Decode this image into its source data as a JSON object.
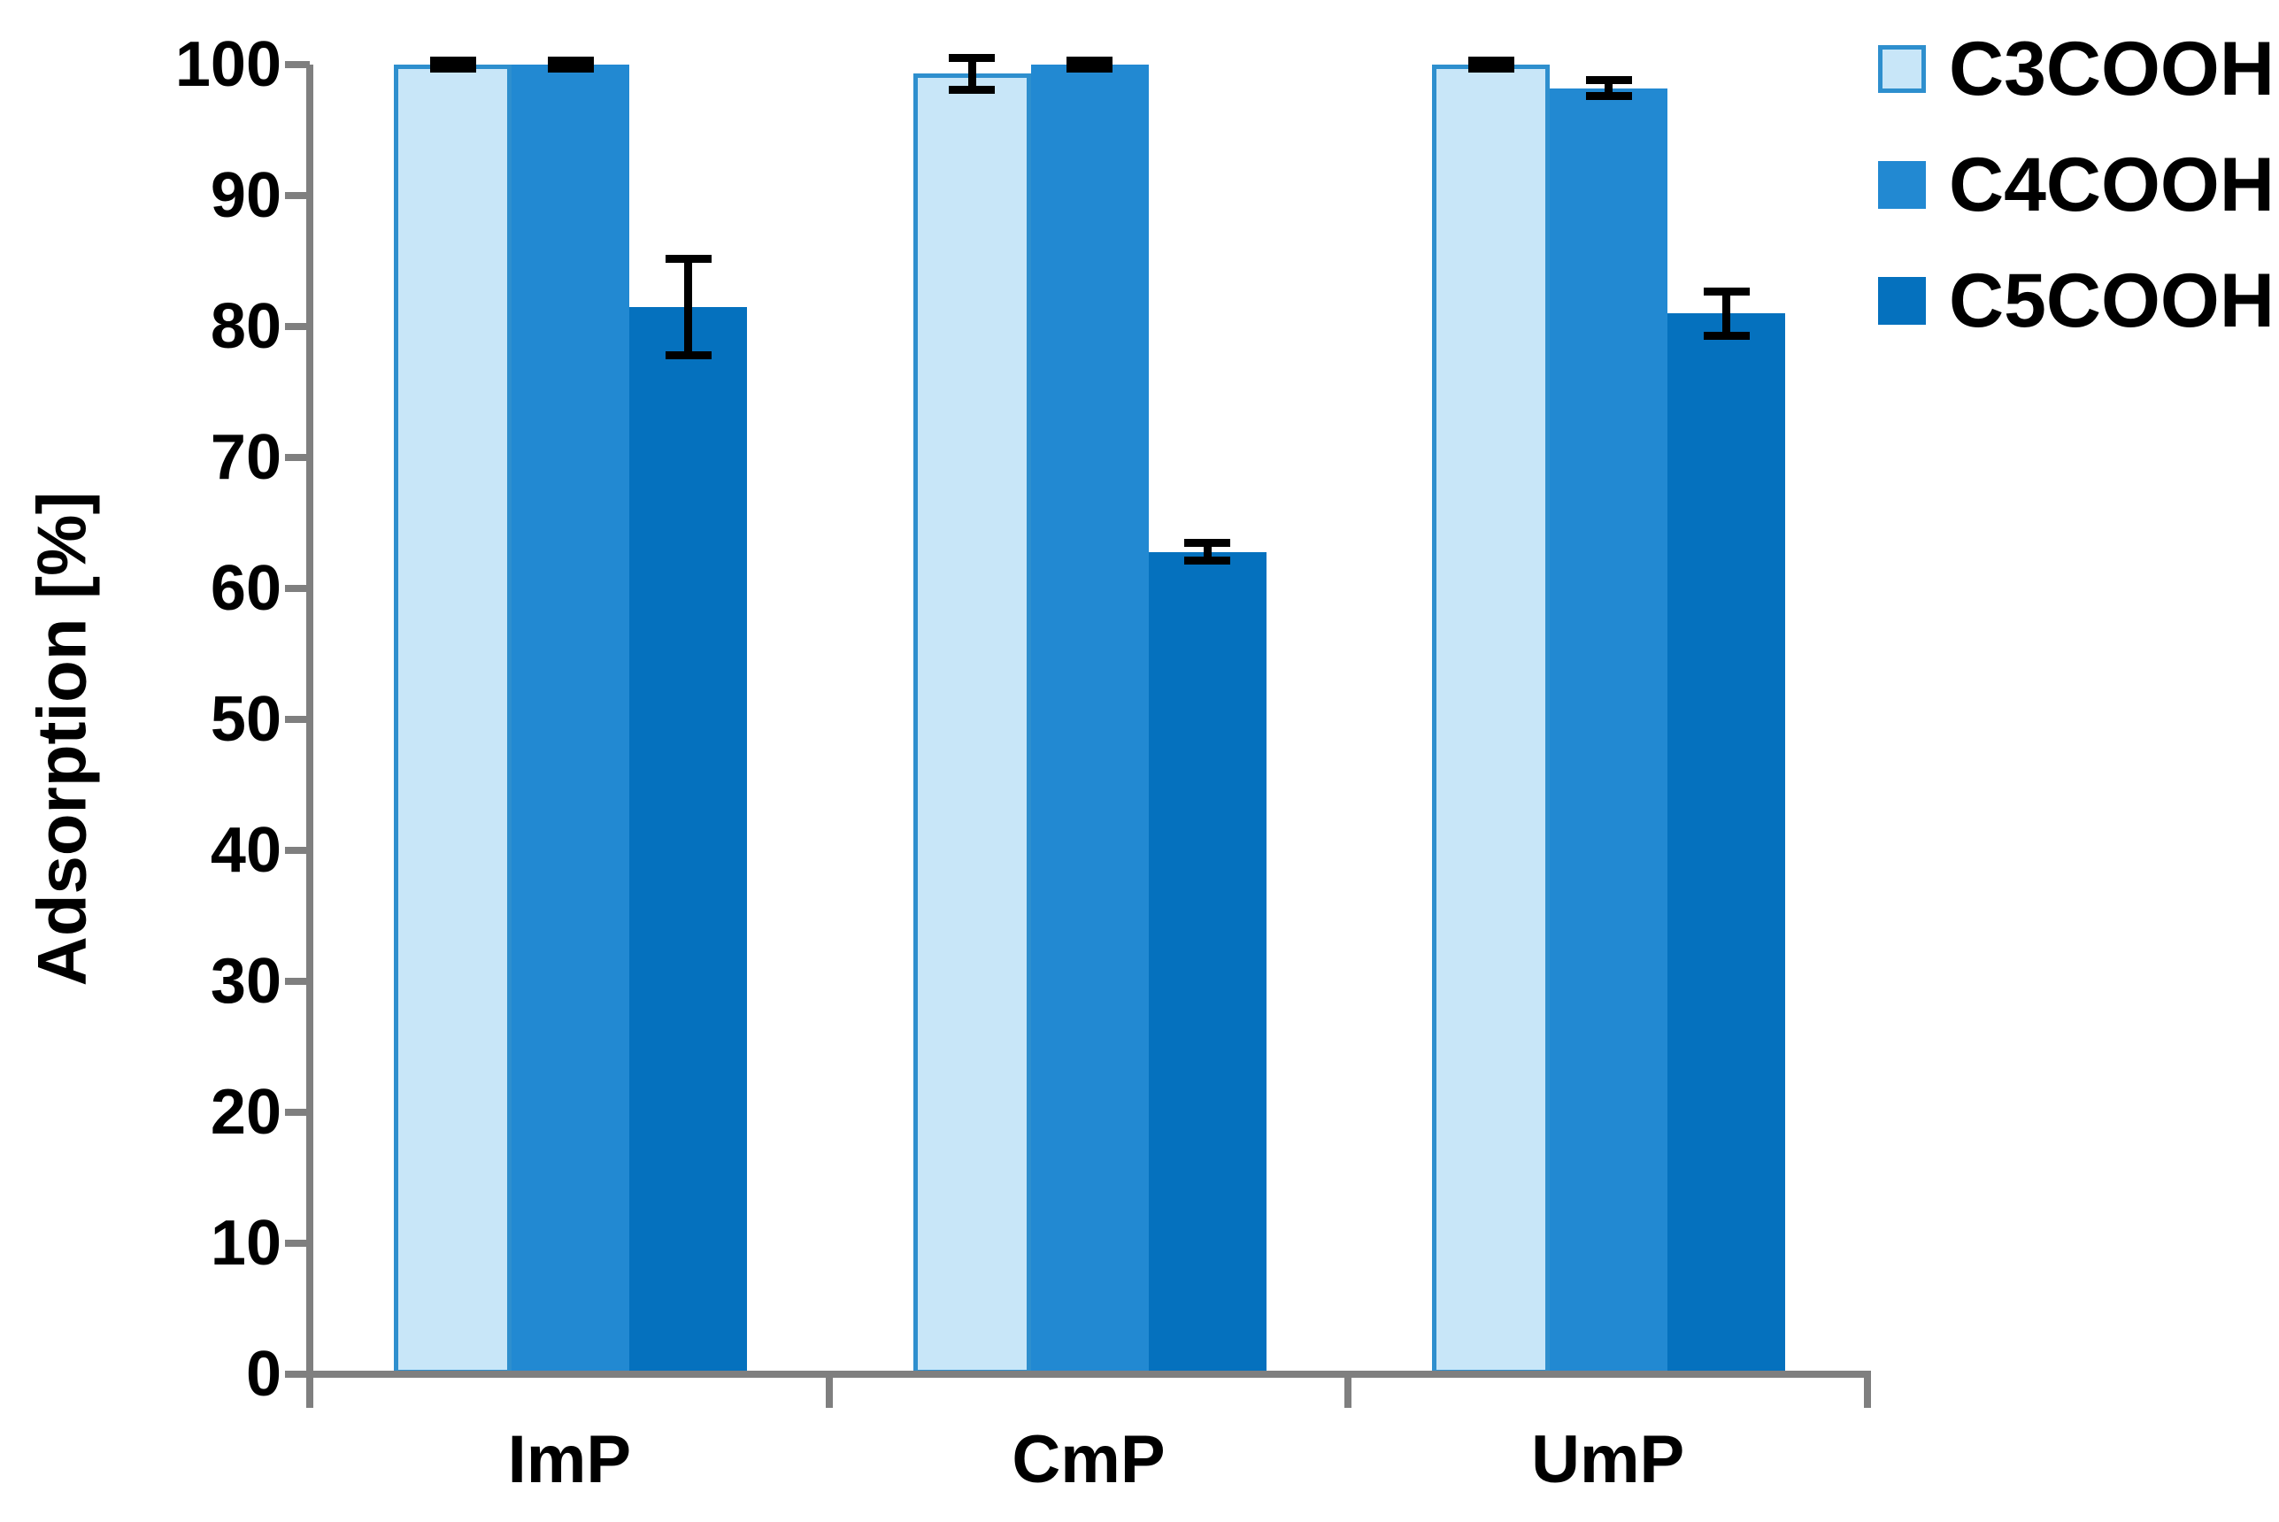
{
  "chart_data": {
    "type": "bar",
    "title": "",
    "xlabel": "",
    "ylabel": "Adsorption [%]",
    "ylim": [
      0,
      100
    ],
    "yticks": [
      0,
      10,
      20,
      30,
      40,
      50,
      60,
      70,
      80,
      90,
      100
    ],
    "categories": [
      "ImP",
      "CmP",
      "UmP"
    ],
    "series": [
      {
        "name": "C3COOH",
        "values": [
          100,
          99.3,
          100
        ],
        "errors": [
          0.3,
          1.2,
          0.3
        ],
        "fill": "#C8E6F8",
        "border": "#2E8FCE"
      },
      {
        "name": "C4COOH",
        "values": [
          100,
          100,
          98.2
        ],
        "errors": [
          0.3,
          0.3,
          0.6
        ],
        "fill": "#2289D2",
        "border": "#2289D2"
      },
      {
        "name": "C5COOH",
        "values": [
          81.5,
          62.8,
          81.0
        ],
        "errors": [
          3.7,
          0.7,
          1.7
        ],
        "fill": "#0571BE",
        "border": "#0571BE"
      }
    ],
    "legend_position": "top-right",
    "grid": false,
    "axis_color": "#7F7F7F",
    "error_bar_color": "#000000",
    "text_color": "#000000"
  }
}
